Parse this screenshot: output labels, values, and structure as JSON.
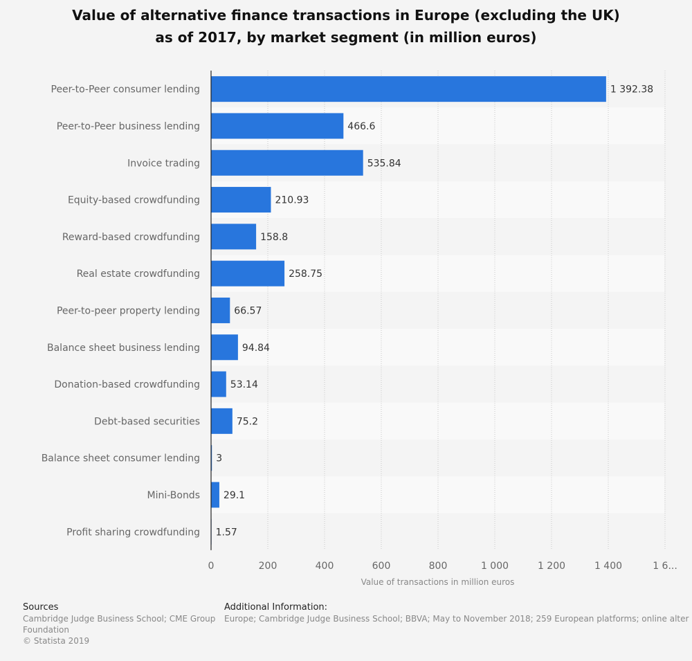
{
  "title_line1": "Value of alternative finance transactions in Europe (excluding the UK)",
  "title_line2": "as of 2017, by market segment (in million euros)",
  "chart_data": {
    "type": "bar",
    "orientation": "horizontal",
    "categories": [
      "Peer-to-Peer consumer lending",
      "Peer-to-Peer business lending",
      "Invoice trading",
      "Equity-based crowdfunding",
      "Reward-based crowdfunding",
      "Real estate crowdfunding",
      "Peer-to-peer property lending",
      "Balance sheet business lending",
      "Donation-based crowdfunding",
      "Debt-based securities",
      "Balance sheet consumer lending",
      "Mini-Bonds",
      "Profit sharing crowdfunding"
    ],
    "values": [
      1392.38,
      466.6,
      535.84,
      210.93,
      158.8,
      258.75,
      66.57,
      94.84,
      53.14,
      75.2,
      3,
      29.1,
      1.57
    ],
    "value_labels": [
      "1 392.38",
      "466.6",
      "535.84",
      "210.93",
      "158.8",
      "258.75",
      "66.57",
      "94.84",
      "53.14",
      "75.2",
      "3",
      "29.1",
      "1.57"
    ],
    "xlabel": "Value of transactions in million euros",
    "xlim": [
      0,
      1600
    ],
    "xticks": [
      0,
      200,
      400,
      600,
      800,
      1000,
      1200,
      1400,
      1600
    ],
    "xtick_labels": [
      "0",
      "200",
      "400",
      "600",
      "800",
      "1 000",
      "1 200",
      "1 400",
      "1 6..."
    ],
    "grid": true,
    "bar_color": "#2876dd"
  },
  "footer": {
    "sources_heading": "Sources",
    "sources_text": "Cambridge Judge Business School; CME Group Foundation",
    "copyright": "© Statista 2019",
    "additional_heading": "Additional Information:",
    "additional_text": "Europe; Cambridge Judge Business School; BBVA; May to November 2018; 259 European platforms; online alter"
  }
}
